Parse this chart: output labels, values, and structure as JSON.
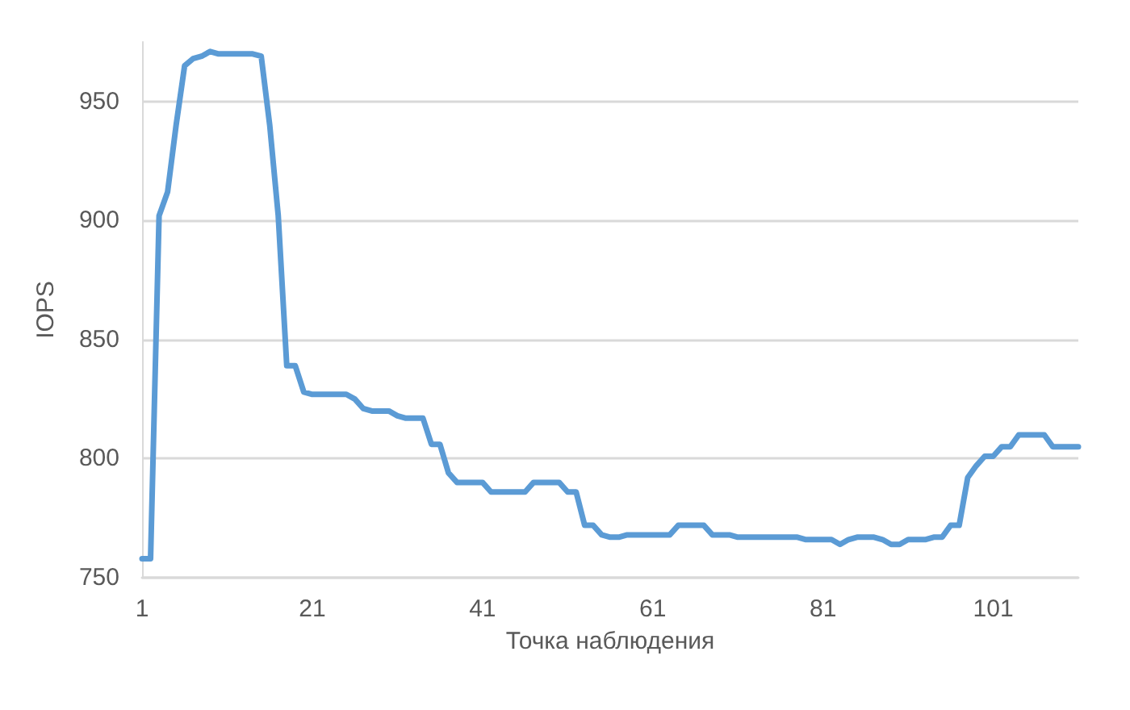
{
  "chart_data": {
    "type": "line",
    "xlabel": "Точка наблюдения",
    "ylabel": "IOPS",
    "x": [
      1,
      2,
      3,
      4,
      5,
      6,
      7,
      8,
      9,
      10,
      11,
      12,
      13,
      14,
      15,
      16,
      17,
      18,
      19,
      20,
      21,
      22,
      23,
      24,
      25,
      26,
      27,
      28,
      29,
      30,
      31,
      32,
      33,
      34,
      35,
      36,
      37,
      38,
      39,
      40,
      41,
      42,
      43,
      44,
      45,
      46,
      47,
      48,
      49,
      50,
      51,
      52,
      53,
      54,
      55,
      56,
      57,
      58,
      59,
      60,
      61,
      62,
      63,
      64,
      65,
      66,
      67,
      68,
      69,
      70,
      71,
      72,
      73,
      74,
      75,
      76,
      77,
      78,
      79,
      80,
      81,
      82,
      83,
      84,
      85,
      86,
      87,
      88,
      89,
      90,
      91,
      92,
      93,
      94,
      95,
      96,
      97,
      98,
      99,
      100,
      101,
      102,
      103,
      104,
      105,
      106,
      107,
      108,
      109,
      110,
      111
    ],
    "series": [
      {
        "color": "#5b9bd5",
        "values": [
          758,
          758,
          902,
          912,
          940,
          965,
          968,
          969,
          971,
          970,
          970,
          970,
          970,
          970,
          969,
          940,
          902,
          839,
          839,
          828,
          827,
          827,
          827,
          827,
          827,
          825,
          821,
          820,
          820,
          820,
          818,
          817,
          817,
          817,
          806,
          806,
          794,
          790,
          790,
          790,
          790,
          786,
          786,
          786,
          786,
          786,
          790,
          790,
          790,
          790,
          786,
          786,
          772,
          772,
          768,
          767,
          767,
          768,
          768,
          768,
          768,
          768,
          768,
          772,
          772,
          772,
          772,
          768,
          768,
          768,
          767,
          767,
          767,
          767,
          767,
          767,
          767,
          767,
          766,
          766,
          766,
          766,
          764,
          766,
          767,
          767,
          767,
          766,
          764,
          764,
          766,
          766,
          766,
          767,
          767,
          772,
          772,
          792,
          797,
          801,
          801,
          805,
          805,
          810,
          810,
          810,
          810,
          805,
          805,
          805,
          805
        ]
      }
    ],
    "xlim": [
      1,
      111
    ],
    "xticks": [
      1,
      21,
      41,
      61,
      81,
      101
    ],
    "ylim": [
      750,
      975
    ],
    "yticks": [
      750,
      800,
      850,
      900,
      950
    ],
    "grid": "y",
    "marker": "none",
    "line_style": "solid"
  }
}
